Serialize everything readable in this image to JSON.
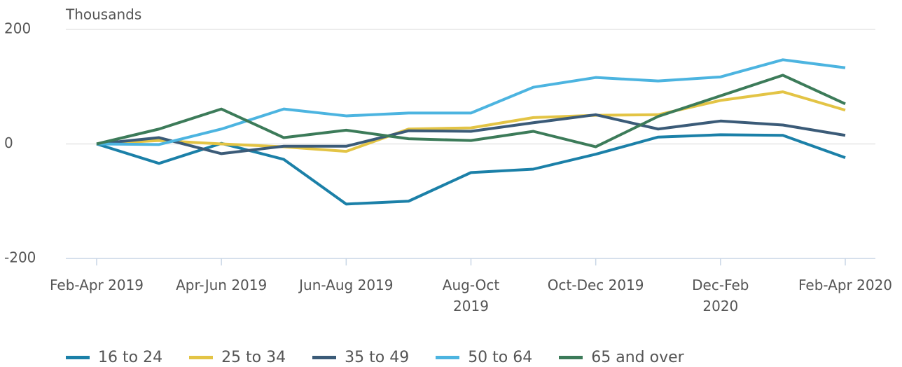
{
  "chart_data": {
    "type": "line",
    "y_label": "Thousands",
    "categories": [
      "Feb-Apr 2019",
      null,
      "Apr-Jun 2019",
      null,
      "Jun-Aug 2019",
      null,
      "Aug-Oct 2019",
      null,
      "Oct-Dec 2019",
      null,
      "Dec-Feb 2020",
      null,
      "Feb-Apr 2020"
    ],
    "series": [
      {
        "name": "16 to 24",
        "color": "#1b80a8",
        "values": [
          0,
          -34,
          1,
          -27,
          -105,
          -100,
          -50,
          -44,
          -18,
          12,
          16,
          15,
          -24
        ]
      },
      {
        "name": "25 to 34",
        "color": "#e3c445",
        "values": [
          0,
          6,
          0,
          -5,
          -13,
          26,
          28,
          46,
          50,
          51,
          76,
          91,
          59
        ]
      },
      {
        "name": "35 to 49",
        "color": "#3b5b78",
        "values": [
          0,
          11,
          -17,
          -4,
          -4,
          23,
          22,
          37,
          51,
          26,
          40,
          33,
          15
        ]
      },
      {
        "name": "50 to 64",
        "color": "#4cb4e0",
        "values": [
          0,
          -1,
          26,
          61,
          49,
          54,
          54,
          99,
          116,
          110,
          117,
          147,
          133
        ]
      },
      {
        "name": "65 and over",
        "color": "#3c7b59",
        "values": [
          0,
          26,
          61,
          11,
          24,
          9,
          6,
          22,
          -5,
          48,
          84,
          120,
          70
        ]
      }
    ],
    "ylim": [
      -200,
      200
    ],
    "yticks": [
      -200,
      0,
      200
    ],
    "grid": true
  }
}
